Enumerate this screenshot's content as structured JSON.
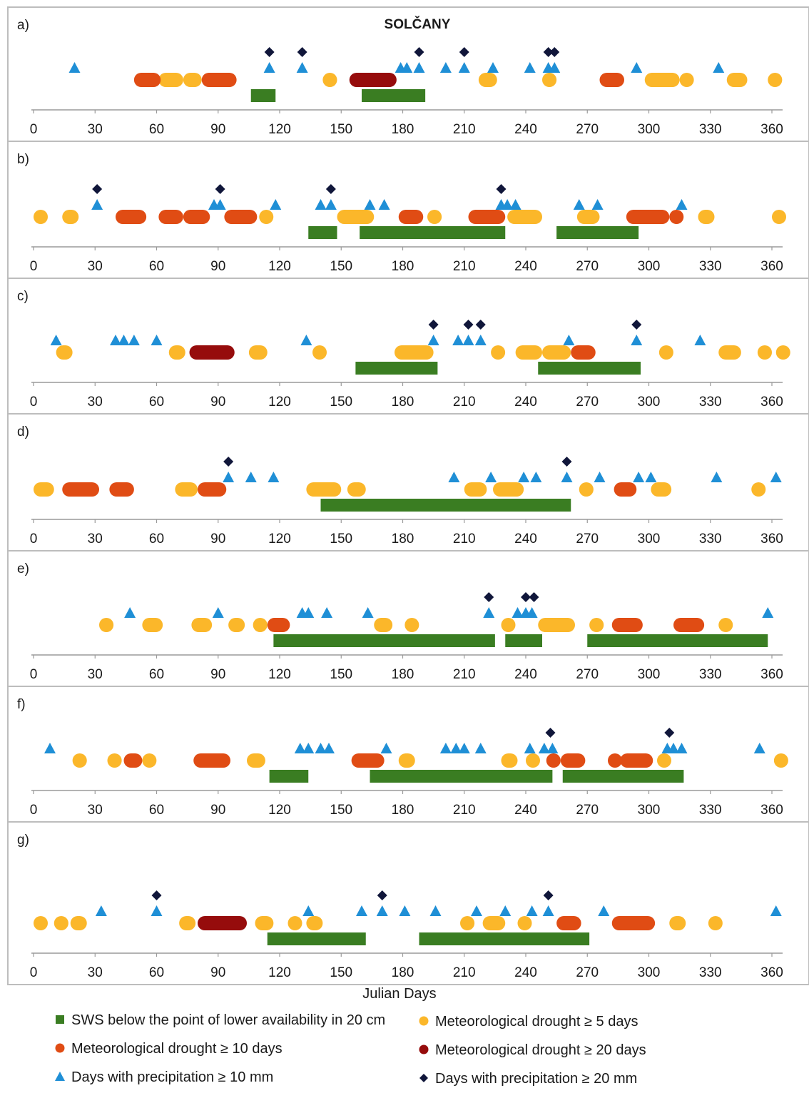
{
  "chart_data": {
    "type": "scatter",
    "title": "SOLČANY",
    "xlabel": "Julian Days",
    "xlim": [
      0,
      365
    ],
    "xticks": [
      0,
      30,
      60,
      90,
      120,
      150,
      180,
      210,
      240,
      270,
      300,
      330,
      360
    ],
    "colors": {
      "sws": "#3a7d22",
      "drought5": "#fbb72a",
      "drought10": "#e04c14",
      "drought20": "#960c0c",
      "precip10": "#1f8fd6",
      "precip20": "#10163a"
    },
    "legend": {
      "sws": "SWS below the point of lower availability in 20 cm",
      "drought5": "Meteorological drought ≥ 5 days",
      "drought10": "Meteorological drought ≥ 10 days",
      "drought20": "Meteorological drought ≥ 20 days",
      "precip10": "Days with precipitation ≥ 10 mm",
      "precip20": "Days with precipitation ≥ 20 mm"
    },
    "panels": [
      {
        "label": "a)",
        "sws": [
          [
            106,
            118
          ],
          [
            160,
            191
          ]
        ],
        "drought5": [
          [
            61,
            73
          ],
          [
            73,
            82
          ],
          [
            141,
            148
          ],
          [
            217,
            226
          ],
          [
            248,
            255
          ],
          [
            298,
            315
          ],
          [
            315,
            320
          ],
          [
            338,
            348
          ],
          [
            358,
            365
          ]
        ],
        "drought10": [
          [
            49,
            62
          ],
          [
            82,
            99
          ],
          [
            276,
            288
          ]
        ],
        "drought20": [
          [
            154,
            177
          ]
        ],
        "precip10": [
          20,
          115,
          131,
          179,
          182,
          188,
          201,
          210,
          224,
          242,
          251,
          254,
          294,
          334
        ],
        "precip20": [
          115,
          131,
          188,
          210,
          251,
          254
        ]
      },
      {
        "label": "b)",
        "drought5": [
          [
            0,
            6
          ],
          [
            14,
            22
          ],
          [
            110,
            116
          ],
          [
            148,
            166
          ],
          [
            192,
            199
          ],
          [
            231,
            248
          ],
          [
            265,
            276
          ],
          [
            324,
            332
          ],
          [
            360,
            365
          ]
        ],
        "drought10": [
          [
            40,
            55
          ],
          [
            61,
            73
          ],
          [
            73,
            86
          ],
          [
            93,
            109
          ],
          [
            178,
            190
          ],
          [
            212,
            230
          ],
          [
            289,
            310
          ],
          [
            310,
            315
          ]
        ],
        "sws": [
          [
            134,
            148
          ],
          [
            159,
            230
          ],
          [
            255,
            295
          ]
        ],
        "precip10": [
          31,
          88,
          91,
          118,
          140,
          145,
          164,
          171,
          228,
          231,
          235,
          266,
          275,
          316
        ],
        "precip20": [
          31,
          91,
          145,
          228
        ]
      },
      {
        "label": "c)",
        "drought5": [
          [
            11,
            19
          ],
          [
            66,
            74
          ],
          [
            105,
            114
          ],
          [
            136,
            142
          ],
          [
            176,
            195
          ],
          [
            223,
            229
          ],
          [
            235,
            248
          ],
          [
            248,
            262
          ],
          [
            305,
            309
          ],
          [
            334,
            345
          ],
          [
            353,
            360
          ],
          [
            362,
            365
          ]
        ],
        "drought10": [
          [
            262,
            274
          ]
        ],
        "drought20": [
          [
            76,
            98
          ]
        ],
        "sws": [
          [
            157,
            197
          ],
          [
            246,
            296
          ]
        ],
        "precip10": [
          11,
          40,
          44,
          49,
          60,
          133,
          195,
          207,
          212,
          218,
          261,
          294,
          325
        ],
        "precip20": [
          195,
          212,
          218,
          294
        ]
      },
      {
        "label": "d)",
        "drought5": [
          [
            0,
            10
          ],
          [
            69,
            80
          ],
          [
            133,
            150
          ],
          [
            153,
            162
          ],
          [
            210,
            221
          ],
          [
            224,
            239
          ],
          [
            266,
            273
          ],
          [
            301,
            311
          ],
          [
            350,
            356
          ]
        ],
        "drought10": [
          [
            14,
            32
          ],
          [
            37,
            49
          ],
          [
            80,
            94
          ],
          [
            283,
            294
          ]
        ],
        "sws": [
          [
            140,
            262
          ]
        ],
        "precip10": [
          95,
          106,
          117,
          205,
          223,
          239,
          245,
          260,
          276,
          295,
          301,
          333,
          362
        ],
        "precip20": [
          95,
          260
        ]
      },
      {
        "label": "e)",
        "drought5": [
          [
            32,
            39
          ],
          [
            53,
            63
          ],
          [
            77,
            87
          ],
          [
            95,
            103
          ],
          [
            107,
            114
          ],
          [
            166,
            175
          ],
          [
            181,
            187
          ],
          [
            228,
            234
          ],
          [
            246,
            264
          ],
          [
            271,
            278
          ],
          [
            334,
            339
          ]
        ],
        "drought10": [
          [
            114,
            125
          ],
          [
            282,
            297
          ],
          [
            312,
            327
          ]
        ],
        "sws": [
          [
            117,
            225
          ],
          [
            230,
            248
          ],
          [
            270,
            358
          ]
        ],
        "precip10": [
          47,
          90,
          131,
          134,
          143,
          163,
          222,
          236,
          240,
          243,
          358
        ],
        "precip20": [
          222,
          240,
          244
        ]
      },
      {
        "label": "f)",
        "drought5": [
          [
            19,
            26
          ],
          [
            36,
            43
          ],
          [
            53,
            59
          ],
          [
            104,
            113
          ],
          [
            178,
            186
          ],
          [
            228,
            236
          ],
          [
            240,
            244
          ],
          [
            304,
            307
          ],
          [
            361,
            365
          ]
        ],
        "drought10": [
          [
            44,
            53
          ],
          [
            78,
            96
          ],
          [
            155,
            171
          ],
          [
            250,
            257
          ],
          [
            257,
            269
          ],
          [
            280,
            286
          ],
          [
            286,
            302
          ]
        ],
        "sws": [
          [
            115,
            134
          ],
          [
            164,
            253
          ],
          [
            258,
            317
          ]
        ],
        "precip10": [
          8,
          130,
          134,
          140,
          144,
          172,
          201,
          206,
          210,
          218,
          242,
          249,
          253,
          309,
          312,
          316,
          354
        ],
        "precip20": [
          252,
          310
        ]
      },
      {
        "label": "g)",
        "drought5": [
          [
            0,
            5
          ],
          [
            10,
            17
          ],
          [
            18,
            26
          ],
          [
            71,
            79
          ],
          [
            108,
            117
          ],
          [
            124,
            130
          ],
          [
            133,
            141
          ],
          [
            208,
            215
          ],
          [
            219,
            230
          ],
          [
            236,
            241
          ],
          [
            310,
            318
          ],
          [
            329,
            335
          ]
        ],
        "drought10": [
          [
            255,
            267
          ],
          [
            282,
            303
          ]
        ],
        "drought20": [
          [
            80,
            104
          ]
        ],
        "sws": [
          [
            114,
            162
          ],
          [
            188,
            271
          ]
        ],
        "precip10": [
          33,
          60,
          134,
          160,
          170,
          181,
          196,
          216,
          230,
          243,
          251,
          278,
          362
        ],
        "precip20": [
          60,
          170,
          251
        ]
      }
    ]
  }
}
